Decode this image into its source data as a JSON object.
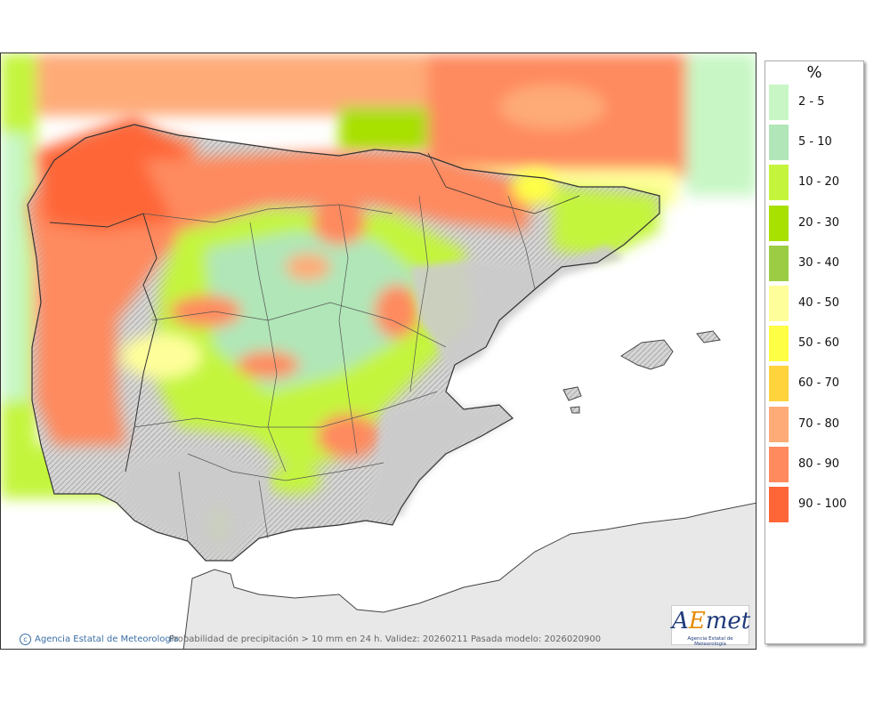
{
  "legend": {
    "title": "%",
    "classes": [
      {
        "label": "2 - 5",
        "color": "#c8f7c5"
      },
      {
        "label": "5 - 10",
        "color": "#b0e6b8"
      },
      {
        "label": "10 - 20",
        "color": "#c4f53c"
      },
      {
        "label": "20 - 30",
        "color": "#a8e000"
      },
      {
        "label": "30 - 40",
        "color": "#9ccc44"
      },
      {
        "label": "40 - 50",
        "color": "#fefe9a"
      },
      {
        "label": "50 - 60",
        "color": "#fefe44"
      },
      {
        "label": "60 - 70",
        "color": "#fed33c"
      },
      {
        "label": "70 - 80",
        "color": "#feab78"
      },
      {
        "label": "80 - 90",
        "color": "#fe8a5e"
      },
      {
        "label": "90 - 100",
        "color": "#fe6638"
      }
    ]
  },
  "footer": {
    "credit": "Agencia Estatal de Meteorología",
    "caption": "Probabilidad de precipitación > 10 mm en 24 h. Validez: 20260211 Pasada modelo: 2026020900"
  },
  "logo": {
    "text_a": "A",
    "text_e": "E",
    "text_rest": "met",
    "subtitle": "Agencia Estatal de Meteorología"
  },
  "map": {
    "sea_color": "#ffffff",
    "land_color": "#d9d9d9",
    "border_color": "#333333"
  }
}
